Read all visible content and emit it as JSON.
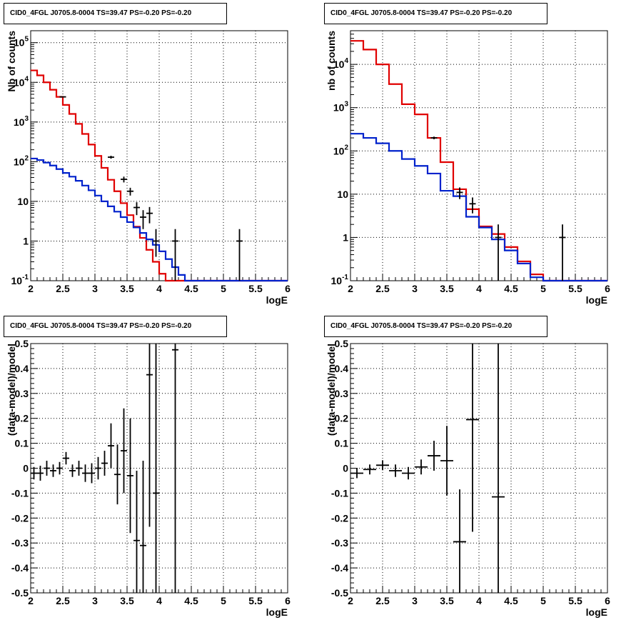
{
  "panel_titles": [
    "CID0_4FGL J0705.8-0004 TS=39.47 PS=-0.20 PS=-0.20",
    "CID0_4FGL J0705.8-0004 TS=39.47 PS=-0.20 PS=-0.20",
    "CID0_4FGL J0705.8-0004 TS=39.47 PS=-0.20 PS=-0.20",
    "CID0_4FGL J0705.8-0004 TS=39.47 PS=-0.20 PS=-0.20"
  ],
  "colors": {
    "total_model": "#e00000",
    "background_model": "#0022cc",
    "data": "#000000"
  },
  "chart_data": [
    {
      "type": "line",
      "title": "CID0_4FGL J0705.8-0004 TS=39.47 PS=-0.20 PS=-0.20",
      "xlabel": "logE",
      "ylabel": "Nb of counts",
      "xlim": [
        2,
        6
      ],
      "ylim": [
        0.1,
        200000
      ],
      "yscale": "log",
      "grid": true,
      "xticks": [
        "2",
        "2.5",
        "3",
        "3.5",
        "4",
        "4.5",
        "5",
        "5.5",
        "6"
      ],
      "yticks": [
        "10^-1",
        "1",
        "10",
        "10^2",
        "10^3",
        "10^4",
        "10^5"
      ],
      "bin_edges": [
        2.0,
        2.1,
        2.2,
        2.3,
        2.4,
        2.5,
        2.6,
        2.7,
        2.8,
        2.9,
        3.0,
        3.1,
        3.2,
        3.3,
        3.4,
        3.5,
        3.6,
        3.7,
        3.8,
        3.9,
        4.0,
        4.1,
        4.2,
        4.3,
        4.4,
        4.5,
        4.6,
        4.7,
        4.8,
        4.9,
        5.0,
        5.1,
        5.2,
        5.3,
        5.4,
        5.5,
        5.6,
        5.7,
        5.8,
        5.9,
        6.0
      ],
      "series": [
        {
          "role": "total_model",
          "values": [
            20000,
            15000,
            10000,
            6500,
            4300,
            2700,
            1600,
            900,
            500,
            270,
            140,
            70,
            35,
            18,
            9,
            4.5,
            2.3,
            1.2,
            0.6,
            0.3,
            0.15,
            0.1,
            0.1,
            0.1,
            0.1,
            0.1,
            0.1,
            0.1,
            0.1,
            0.1,
            0.1,
            0.1,
            0.1,
            0.1,
            0.1,
            0.1,
            0.1,
            0.1,
            0.1,
            0.1
          ]
        },
        {
          "role": "background_model",
          "values": [
            120,
            110,
            95,
            80,
            65,
            52,
            42,
            33,
            25,
            19,
            14,
            10,
            7.5,
            5.5,
            4,
            3,
            2.2,
            1.6,
            1.1,
            0.8,
            0.55,
            0.35,
            0.22,
            0.14,
            0.1,
            0.1,
            0.1,
            0.1,
            0.1,
            0.1,
            0.1,
            0.1,
            0.1,
            0.1,
            0.1,
            0.1,
            0.1,
            0.1,
            0.1,
            0.1
          ]
        }
      ],
      "data_points": [
        {
          "x": 2.5,
          "y": 4300,
          "ylo": 4235,
          "yhi": 4365
        },
        {
          "x": 3.25,
          "y": 130,
          "ylo": 119,
          "yhi": 141
        },
        {
          "x": 3.45,
          "y": 36,
          "ylo": 30,
          "yhi": 42
        },
        {
          "x": 3.55,
          "y": 18,
          "ylo": 14,
          "yhi": 22
        },
        {
          "x": 3.65,
          "y": 7,
          "ylo": 4.5,
          "yhi": 9.5
        },
        {
          "x": 3.75,
          "y": 4,
          "ylo": 2,
          "yhi": 6
        },
        {
          "x": 3.85,
          "y": 5,
          "ylo": 2.8,
          "yhi": 7.2
        },
        {
          "x": 3.95,
          "y": 1,
          "ylo": 0.4,
          "yhi": 2
        },
        {
          "x": 4.25,
          "y": 1,
          "ylo": 0.1,
          "yhi": 2
        },
        {
          "x": 5.25,
          "y": 1,
          "ylo": 0.1,
          "yhi": 2
        }
      ]
    },
    {
      "type": "line",
      "title": "CID0_4FGL J0705.8-0004 TS=39.47 PS=-0.20 PS=-0.20",
      "xlabel": "logE",
      "ylabel": "nb of counts",
      "xlim": [
        2,
        6
      ],
      "ylim": [
        0.1,
        60000
      ],
      "yscale": "log",
      "grid": true,
      "xticks": [
        "2",
        "2.5",
        "3",
        "3.5",
        "4",
        "4.5",
        "5",
        "5.5",
        "6"
      ],
      "yticks": [
        "10^-1",
        "1",
        "10",
        "10^2",
        "10^3",
        "10^4"
      ],
      "bin_edges": [
        2.0,
        2.2,
        2.4,
        2.6,
        2.8,
        3.0,
        3.2,
        3.4,
        3.6,
        3.8,
        4.0,
        4.2,
        4.4,
        4.6,
        4.8,
        5.0,
        5.2,
        5.4,
        5.6,
        5.8,
        6.0
      ],
      "series": [
        {
          "role": "total_model",
          "values": [
            35000,
            22000,
            10000,
            3500,
            1200,
            700,
            200,
            55,
            13,
            4.5,
            1.8,
            1.2,
            0.6,
            0.28,
            0.14,
            0.1,
            0.1,
            0.1,
            0.1,
            0.1
          ]
        },
        {
          "role": "background_model",
          "values": [
            250,
            200,
            150,
            100,
            65,
            45,
            30,
            12,
            9,
            3,
            1.7,
            0.9,
            0.5,
            0.25,
            0.12,
            0.1,
            0.1,
            0.1,
            0.1,
            0.1
          ]
        }
      ],
      "data_points": [
        {
          "x": 3.3,
          "y": 200,
          "ylo": 186,
          "yhi": 214
        },
        {
          "x": 3.7,
          "y": 11,
          "ylo": 7.7,
          "yhi": 14.3
        },
        {
          "x": 3.9,
          "y": 6,
          "ylo": 3.6,
          "yhi": 8.4
        },
        {
          "x": 4.3,
          "y": 1,
          "ylo": 0.1,
          "yhi": 2
        },
        {
          "x": 5.3,
          "y": 1,
          "ylo": 0.1,
          "yhi": 2
        }
      ]
    },
    {
      "type": "scatter",
      "title": "CID0_4FGL J0705.8-0004 TS=39.47 PS=-0.20 PS=-0.20",
      "xlabel": "logE",
      "ylabel": "(data-model)/model",
      "xlim": [
        2,
        6
      ],
      "ylim": [
        -0.5,
        0.5
      ],
      "grid": true,
      "xticks": [
        "2",
        "2.5",
        "3",
        "3.5",
        "4",
        "4.5",
        "5",
        "5.5",
        "6"
      ],
      "yticks": [
        "-0.5",
        "-0.4",
        "-0.3",
        "-0.2",
        "-0.1",
        "0",
        "0.1",
        "0.2",
        "0.3",
        "0.4",
        "0.5"
      ],
      "bin_width": 0.1,
      "points": [
        {
          "x": 2.05,
          "y": -0.02,
          "err": 0.025
        },
        {
          "x": 2.15,
          "y": -0.02,
          "err": 0.03
        },
        {
          "x": 2.25,
          "y": 0.0,
          "err": 0.03
        },
        {
          "x": 2.35,
          "y": -0.01,
          "err": 0.025
        },
        {
          "x": 2.45,
          "y": 0.0,
          "err": 0.025
        },
        {
          "x": 2.55,
          "y": 0.04,
          "err": 0.025
        },
        {
          "x": 2.65,
          "y": -0.01,
          "err": 0.025
        },
        {
          "x": 2.75,
          "y": 0.0,
          "err": 0.03
        },
        {
          "x": 2.85,
          "y": -0.02,
          "err": 0.035
        },
        {
          "x": 2.95,
          "y": -0.02,
          "err": 0.04
        },
        {
          "x": 3.05,
          "y": 0.0,
          "err": 0.045
        },
        {
          "x": 3.15,
          "y": 0.02,
          "err": 0.05
        },
        {
          "x": 3.25,
          "y": 0.09,
          "err": 0.09
        },
        {
          "x": 3.35,
          "y": -0.025,
          "err": 0.12
        },
        {
          "x": 3.45,
          "y": 0.07,
          "err": 0.17
        },
        {
          "x": 3.55,
          "y": -0.03,
          "err": 0.23
        },
        {
          "x": 3.65,
          "y": -0.29,
          "err": 0.28
        },
        {
          "x": 3.75,
          "y": -0.31,
          "err": 0.34
        },
        {
          "x": 3.85,
          "y": 0.375,
          "err": 0.61
        },
        {
          "x": 3.95,
          "y": -0.1,
          "err": 0.9
        },
        {
          "x": 4.25,
          "y": 0.475,
          "err": 1.2
        }
      ]
    },
    {
      "type": "scatter",
      "title": "CID0_4FGL J0705.8-0004 TS=39.47 PS=-0.20 PS=-0.20",
      "xlabel": "logE",
      "ylabel": "(data-model)/model",
      "xlim": [
        2,
        6
      ],
      "ylim": [
        -0.5,
        0.5
      ],
      "grid": true,
      "xticks": [
        "2",
        "2.5",
        "3",
        "3.5",
        "4",
        "4.5",
        "5",
        "5.5",
        "6"
      ],
      "yticks": [
        "-0.5",
        "-0.4",
        "-0.3",
        "-0.2",
        "-0.1",
        "0",
        "0.1",
        "0.2",
        "0.3",
        "0.4",
        "0.5"
      ],
      "bin_width": 0.2,
      "points": [
        {
          "x": 2.1,
          "y": -0.02,
          "err": 0.02
        },
        {
          "x": 2.3,
          "y": -0.005,
          "err": 0.02
        },
        {
          "x": 2.5,
          "y": 0.012,
          "err": 0.02
        },
        {
          "x": 2.7,
          "y": -0.01,
          "err": 0.025
        },
        {
          "x": 2.9,
          "y": -0.02,
          "err": 0.025
        },
        {
          "x": 3.1,
          "y": 0.005,
          "err": 0.03
        },
        {
          "x": 3.3,
          "y": 0.05,
          "err": 0.06
        },
        {
          "x": 3.5,
          "y": 0.03,
          "err": 0.14
        },
        {
          "x": 3.7,
          "y": -0.295,
          "err": 0.21
        },
        {
          "x": 3.9,
          "y": 0.195,
          "err": 0.45
        },
        {
          "x": 4.3,
          "y": -0.115,
          "err": 1.0
        }
      ]
    }
  ]
}
